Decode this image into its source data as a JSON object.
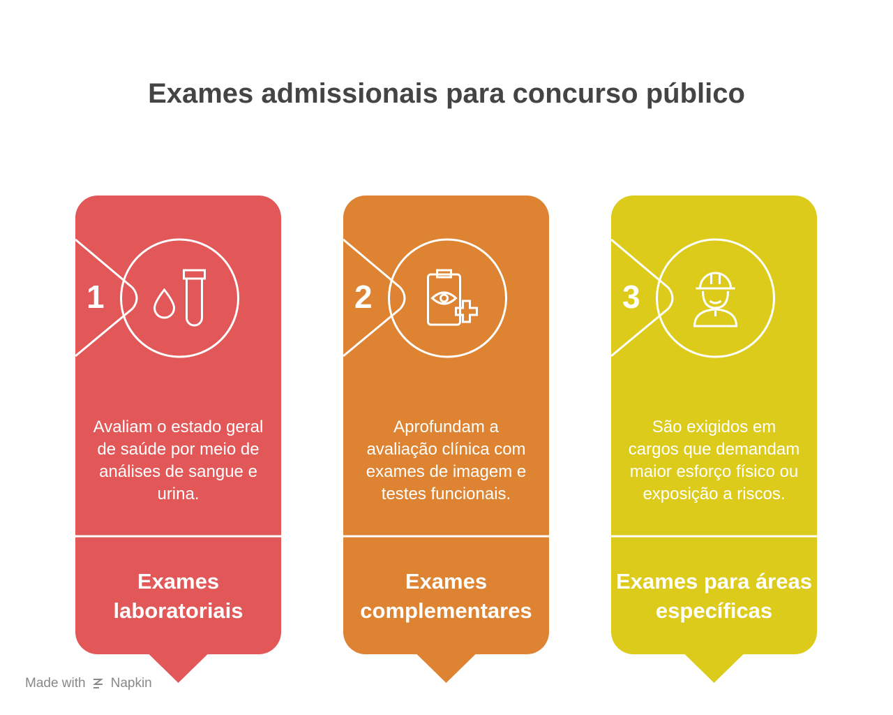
{
  "title": "Exames admissionais para concurso público",
  "cards": [
    {
      "number": "1",
      "description": "Avaliam o estado geral de saúde por meio de análises de sangue e urina.",
      "heading": "Exames laboratoriais",
      "color": "#e25757"
    },
    {
      "number": "2",
      "description": "Aprofundam a avaliação clínica com exames de imagem e testes funcionais.",
      "heading": "Exames complementares",
      "color": "#dd8331"
    },
    {
      "number": "3",
      "description": "São exigidos em cargos que demandam maior esforço físico ou exposição a riscos.",
      "heading": "Exames para áreas específicas",
      "color": "#ddcb1b"
    }
  ],
  "footer": {
    "made_with": "Made with",
    "brand": "Napkin"
  }
}
